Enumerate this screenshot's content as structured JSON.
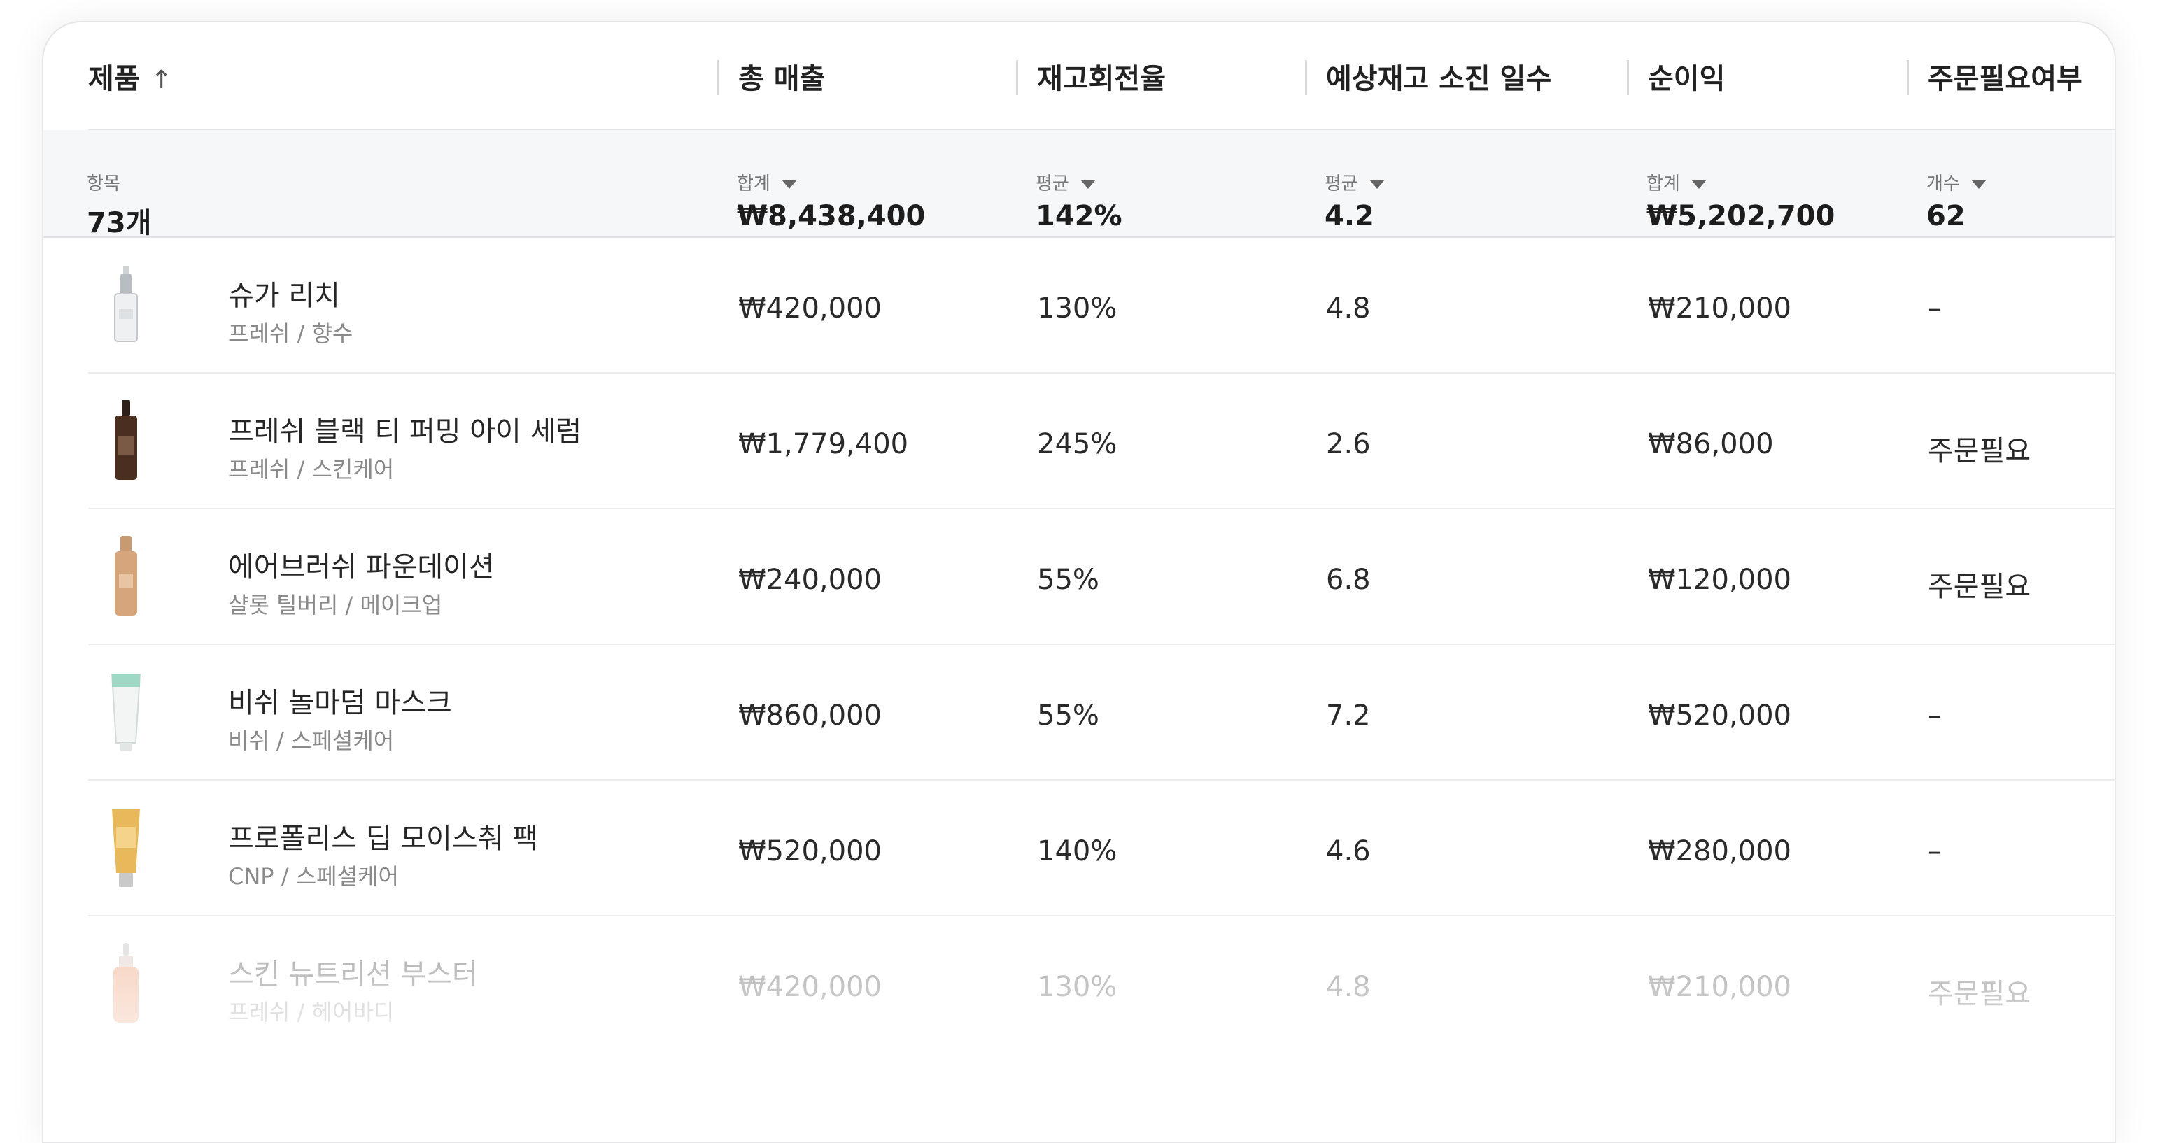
{
  "columns": {
    "product": "제품",
    "sort_icon": "↑",
    "total_sales": "총 매출",
    "turnover": "재고회전율",
    "days_to_depletion": "예상재고 소진 일수",
    "net_profit": "순이익",
    "order_needed": "주문필요여부"
  },
  "summary": {
    "product": {
      "label": "항목",
      "value": "73개"
    },
    "total_sales": {
      "label": "합계",
      "value": "₩8,438,400"
    },
    "turnover": {
      "label": "평균",
      "value": "142%"
    },
    "days_to_depletion": {
      "label": "평균",
      "value": "4.2"
    },
    "net_profit": {
      "label": "합계",
      "value": "₩5,202,700"
    },
    "order_needed": {
      "label": "개수",
      "value": "62"
    }
  },
  "rows": [
    {
      "name": "슈가 리치",
      "category": "프레쉬 / 향수",
      "sales": "₩420,000",
      "turnover": "130%",
      "days": "4.8",
      "profit": "₩210,000",
      "order": "–",
      "icon": "perfume-bottle-icon"
    },
    {
      "name": "프레쉬 블랙 티 퍼밍 아이 세럼",
      "category": "프레쉬 / 스킨케어",
      "sales": "₩1,779,400",
      "turnover": "245%",
      "days": "2.6",
      "profit": "₩86,000",
      "order": "주문필요",
      "icon": "serum-bottle-icon"
    },
    {
      "name": "에어브러쉬 파운데이션",
      "category": "샬롯 틸버리 / 메이크업",
      "sales": "₩240,000",
      "turnover": "55%",
      "days": "6.8",
      "profit": "₩120,000",
      "order": "주문필요",
      "icon": "foundation-bottle-icon"
    },
    {
      "name": "비쉬 놀마덤 마스크",
      "category": "비쉬 / 스페셜케어",
      "sales": "₩860,000",
      "turnover": "55%",
      "days": "7.2",
      "profit": "₩520,000",
      "order": "–",
      "icon": "mask-tube-icon"
    },
    {
      "name": "프로폴리스 딥 모이스춰 팩",
      "category": "CNP / 스페셜케어",
      "sales": "₩520,000",
      "turnover": "140%",
      "days": "4.6",
      "profit": "₩280,000",
      "order": "–",
      "icon": "pack-tube-icon"
    },
    {
      "name": "스킨 뉴트리션 부스터",
      "category": "프레쉬 / 헤어바디",
      "sales": "₩420,000",
      "turnover": "130%",
      "days": "4.8",
      "profit": "₩210,000",
      "order": "주문필요",
      "icon": "dropper-bottle-icon"
    }
  ]
}
